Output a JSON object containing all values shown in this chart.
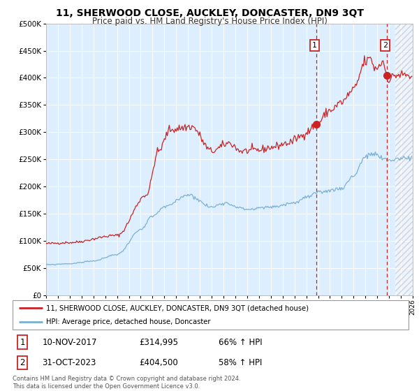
{
  "title1": "11, SHERWOOD CLOSE, AUCKLEY, DONCASTER, DN9 3QT",
  "title2": "Price paid vs. HM Land Registry's House Price Index (HPI)",
  "legend_line1": "11, SHERWOOD CLOSE, AUCKLEY, DONCASTER, DN9 3QT (detached house)",
  "legend_line2": "HPI: Average price, detached house, Doncaster",
  "annotation1_label": "1",
  "annotation1_date": "10-NOV-2017",
  "annotation1_price": "£314,995",
  "annotation1_hpi": "66% ↑ HPI",
  "annotation2_label": "2",
  "annotation2_date": "31-OCT-2023",
  "annotation2_price": "£404,500",
  "annotation2_hpi": "58% ↑ HPI",
  "footer": "Contains HM Land Registry data © Crown copyright and database right 2024.\nThis data is licensed under the Open Government Licence v3.0.",
  "sale1_year": 2017.87,
  "sale1_value": 314995,
  "sale2_year": 2023.83,
  "sale2_value": 404500,
  "hpi_color": "#7ab0d4",
  "property_color": "#cc2222",
  "vline_color": "#cc2222",
  "background_plot": "#ddeeff",
  "ylim": [
    0,
    500000
  ],
  "xlim_start": 1995,
  "xlim_end": 2026,
  "hatch_start": 2024.5,
  "prop_key_points": {
    "1995": 95000,
    "1997": 97000,
    "2001": 110000,
    "2003.5": 185000,
    "2004.5": 265000,
    "2005.5": 305000,
    "2007.3": 310000,
    "2009.0": 265000,
    "2010.5": 280000,
    "2011.5": 265000,
    "2013": 267000,
    "2014": 272000,
    "2015.5": 280000,
    "2016.5": 292000,
    "2017.0": 300000,
    "2017.87": 314995,
    "2019": 340000,
    "2020": 355000,
    "2021": 378000,
    "2022.0": 430000,
    "2022.5": 435000,
    "2022.8": 415000,
    "2023.0": 420000,
    "2023.5": 430000,
    "2023.83": 404500,
    "2024.0": 395000,
    "2024.5": 405000,
    "2025.5": 405000,
    "2026.0": 400000
  },
  "hpi_key_points": {
    "1995": 56000,
    "1997": 58000,
    "1999": 63000,
    "2001": 75000,
    "2003": 120000,
    "2004": 145000,
    "2005": 162000,
    "2007": 185000,
    "2009": 162000,
    "2010": 170000,
    "2012": 158000,
    "2014": 162000,
    "2016": 170000,
    "2017": 180000,
    "2018": 188000,
    "2019": 193000,
    "2020": 197000,
    "2021": 220000,
    "2022": 255000,
    "2022.8": 260000,
    "2023.5": 250000,
    "2024": 248000,
    "2025": 252000,
    "2026": 253000
  }
}
